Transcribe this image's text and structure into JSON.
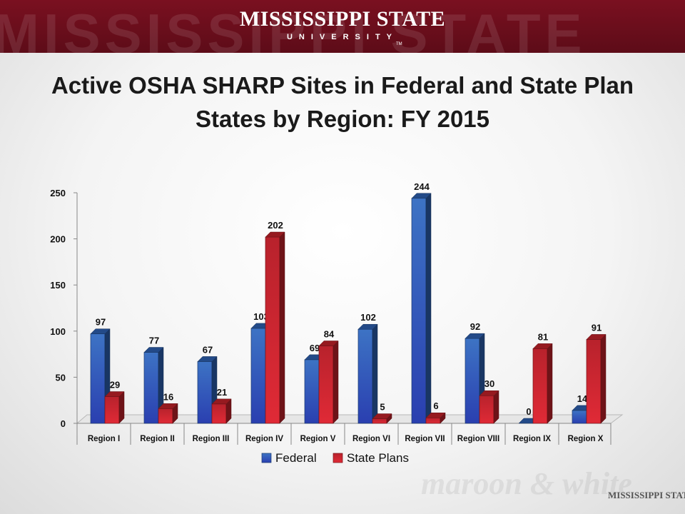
{
  "header": {
    "watermark": "MISSISSIPPI STATE",
    "logo_main": "MISSISSIPPI STATE",
    "logo_sub": "UNIVERSITY",
    "logo_tm": "TM"
  },
  "footer": {
    "watermark": "maroon & white",
    "logo": "MISSISSIPPI STATE"
  },
  "chart_data": {
    "type": "bar",
    "title": "Active OSHA SHARP Sites in Federal and State Plan States by Region: FY 2015",
    "categories": [
      "Region I",
      "Region II",
      "Region III",
      "Region IV",
      "Region V",
      "Region VI",
      "Region VII",
      "Region VIII",
      "Region IX",
      "Region X"
    ],
    "series": [
      {
        "name": "Federal",
        "values": [
          97,
          77,
          67,
          103,
          69,
          102,
          244,
          92,
          0,
          14
        ],
        "color": "#2e63b5"
      },
      {
        "name": "State Plans",
        "values": [
          29,
          16,
          21,
          202,
          84,
          5,
          6,
          30,
          81,
          91
        ],
        "color": "#c8232b"
      }
    ],
    "ylim": [
      0,
      250
    ],
    "yticks": [
      0,
      50,
      100,
      150,
      200,
      250
    ],
    "xlabel": "",
    "ylabel": "",
    "legend": "bottom",
    "grid": false
  }
}
